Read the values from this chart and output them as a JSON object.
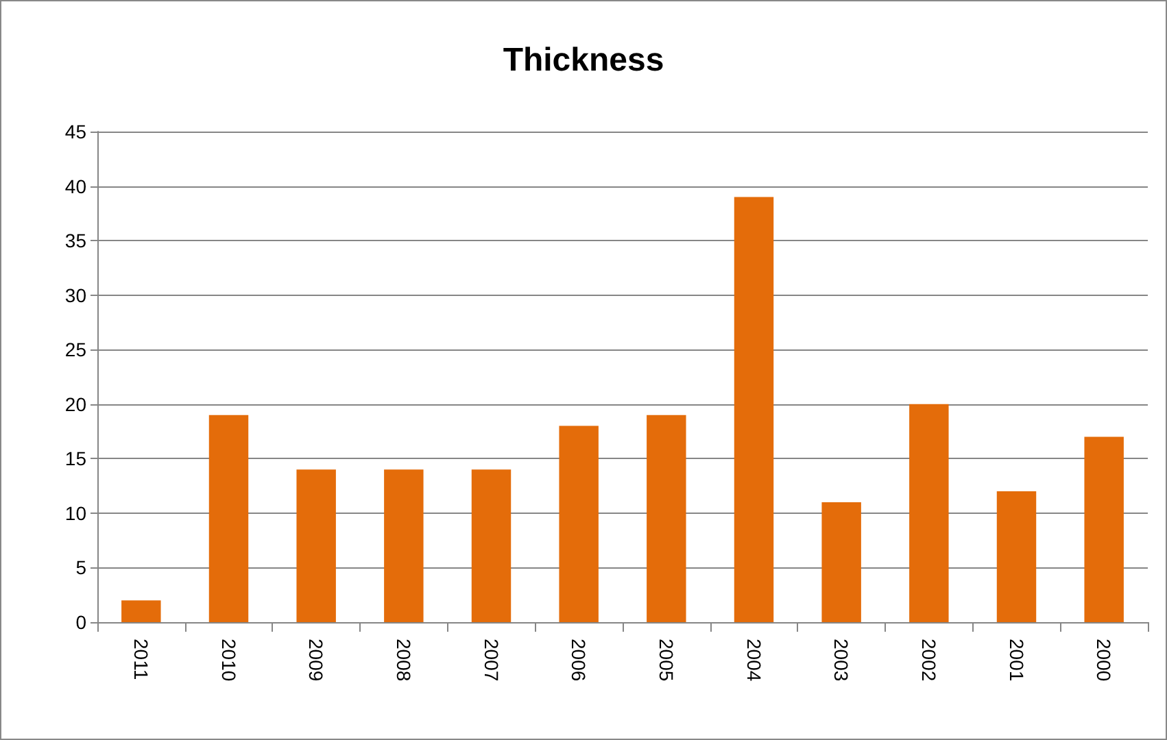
{
  "chart_data": {
    "type": "bar",
    "title": "Thickness",
    "categories": [
      "2011",
      "2010",
      "2009",
      "2008",
      "2007",
      "2006",
      "2005",
      "2004",
      "2003",
      "2002",
      "2001",
      "2000"
    ],
    "values": [
      2,
      19,
      14,
      14,
      14,
      18,
      19,
      39,
      11,
      20,
      12,
      17
    ],
    "color": "#e46c0a",
    "ylim": [
      0,
      45
    ],
    "yticks": [
      0,
      5,
      10,
      15,
      20,
      25,
      30,
      35,
      40,
      45
    ],
    "grid": "y"
  }
}
